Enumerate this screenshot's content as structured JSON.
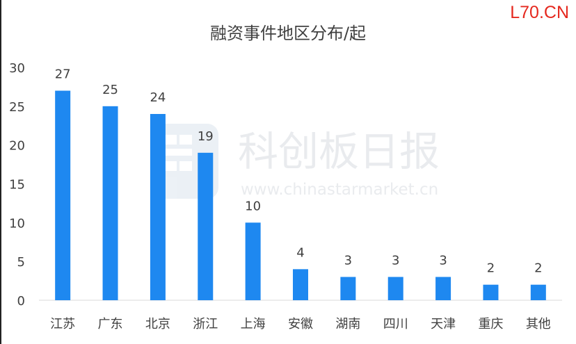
{
  "corner_tag": "L70.CN",
  "watermark": {
    "brand": "科创板日报",
    "url": "www.chinastarmarket.cn"
  },
  "colors": {
    "bar": "#1e88f0",
    "text": "#404040",
    "axis": "#d9d9d9",
    "tag": "#e5281e"
  },
  "chart_data": {
    "type": "bar",
    "title": "融资事件地区分布/起",
    "xlabel": "",
    "ylabel": "",
    "categories": [
      "江苏",
      "广东",
      "北京",
      "浙江",
      "上海",
      "安徽",
      "湖南",
      "四川",
      "天津",
      "重庆",
      "其他"
    ],
    "values": [
      27,
      25,
      24,
      19,
      10,
      4,
      3,
      3,
      3,
      2,
      2
    ],
    "ylim": [
      0,
      30
    ],
    "yticks": [
      0,
      5,
      10,
      15,
      20,
      25,
      30
    ],
    "grid": false,
    "legend": "none"
  }
}
